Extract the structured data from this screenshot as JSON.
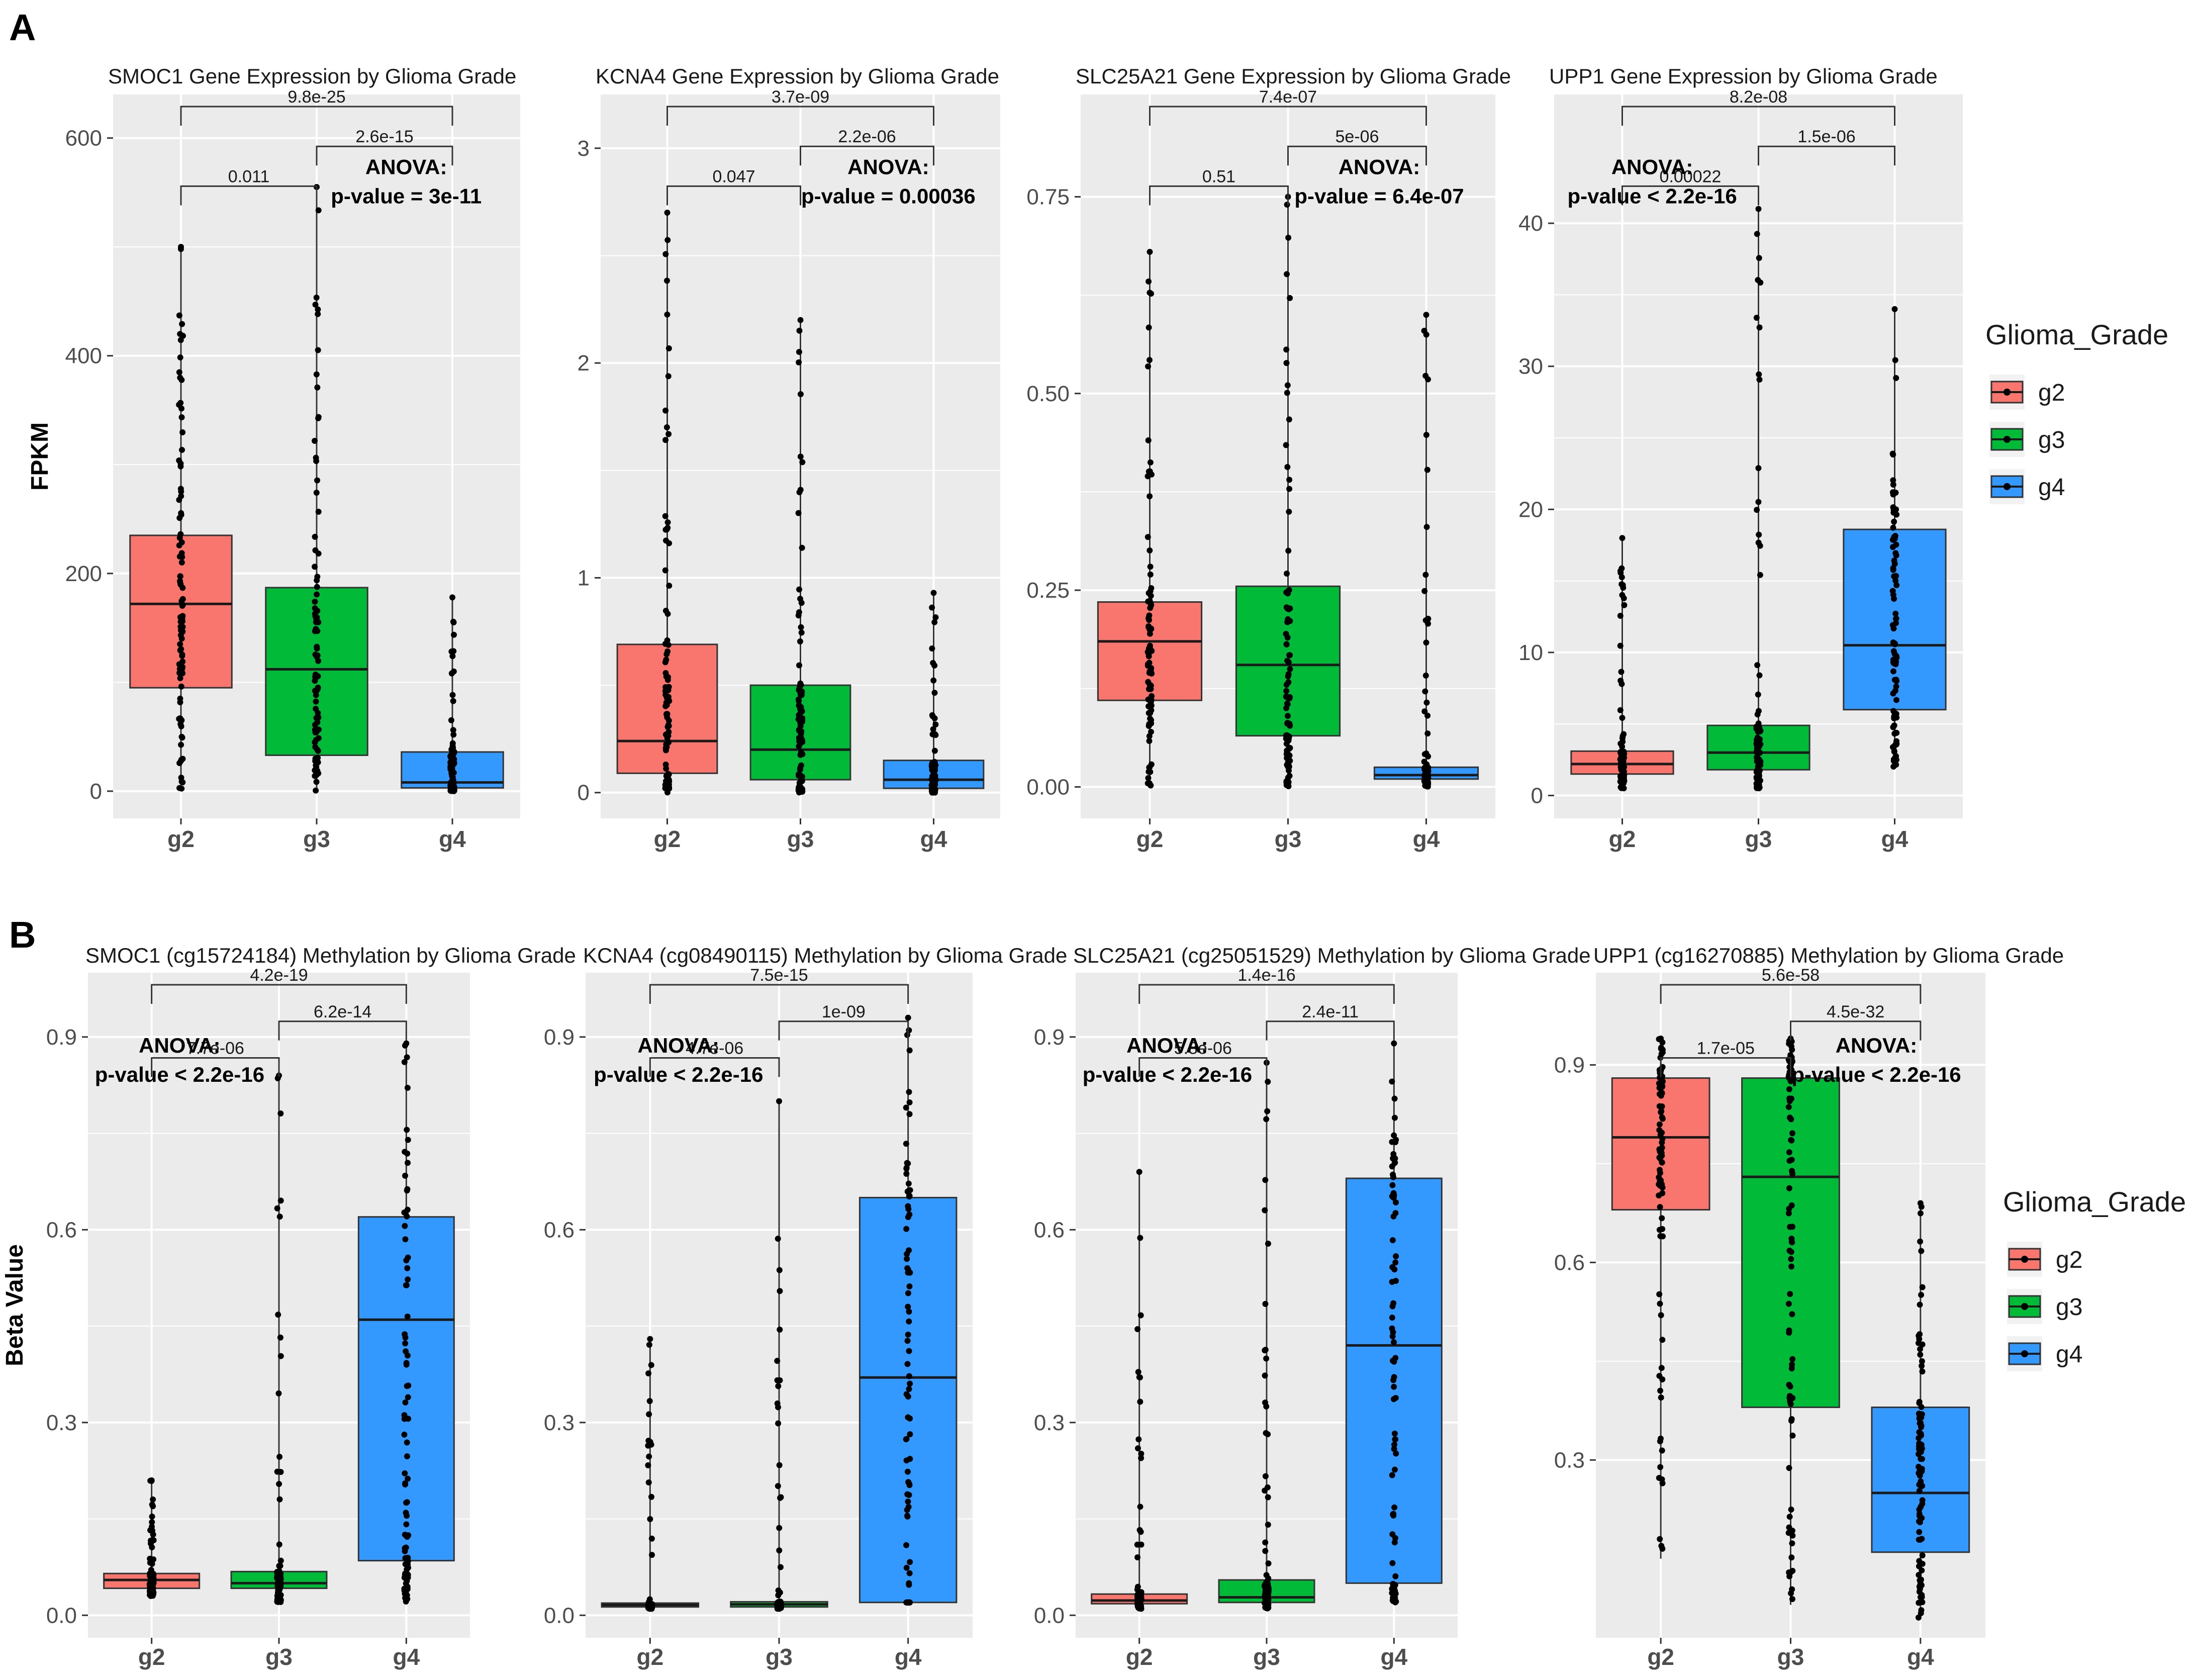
{
  "panels": [
    {
      "letter": "A",
      "row": 0
    },
    {
      "letter": "B",
      "row": 1
    }
  ],
  "colors": {
    "g2": "#F8766D",
    "g3": "#00BA38",
    "g4": "#3399FF"
  },
  "legend": {
    "title": "Glioma_Grade",
    "items": [
      {
        "label": "g2",
        "color": "#F8766D"
      },
      {
        "label": "g3",
        "color": "#00BA38"
      },
      {
        "label": "g4",
        "color": "#3399FF"
      }
    ]
  },
  "chart_data": [
    {
      "type": "boxplot",
      "row": 0,
      "col": 0,
      "title": "SMOC1 Gene Expression by Glioma Grade",
      "ylabel": "FPKM",
      "xlabel": "",
      "ylim": [
        -25,
        640
      ],
      "yticks": [
        0,
        200,
        400,
        600
      ],
      "categories": [
        "g2",
        "g3",
        "g4"
      ],
      "boxes": [
        {
          "category": "g2",
          "q1": 95,
          "median": 172,
          "q3": 235,
          "min": 0,
          "max": 500
        },
        {
          "category": "g3",
          "q1": 33,
          "median": 112,
          "q3": 187,
          "min": 0,
          "max": 555
        },
        {
          "category": "g4",
          "q1": 3,
          "median": 8,
          "q3": 36,
          "min": 0,
          "max": 178
        }
      ],
      "comparisons": [
        {
          "from": "g2",
          "to": "g3",
          "label": "0.011",
          "level": 1
        },
        {
          "from": "g3",
          "to": "g4",
          "label": "2.6e-15",
          "level": 2
        },
        {
          "from": "g2",
          "to": "g4",
          "label": "9.8e-25",
          "level": 3
        }
      ],
      "anova": {
        "line1": "ANOVA:",
        "line2": "p-value = 3e-11",
        "position": "right"
      }
    },
    {
      "type": "boxplot",
      "row": 0,
      "col": 1,
      "title": "KCNA4 Gene Expression by Glioma Grade",
      "ylabel": "",
      "xlabel": "",
      "ylim": [
        -0.12,
        3.25
      ],
      "yticks": [
        0,
        1,
        2,
        3
      ],
      "categories": [
        "g2",
        "g3",
        "g4"
      ],
      "boxes": [
        {
          "category": "g2",
          "q1": 0.09,
          "median": 0.24,
          "q3": 0.69,
          "min": 0,
          "max": 2.7
        },
        {
          "category": "g3",
          "q1": 0.06,
          "median": 0.2,
          "q3": 0.5,
          "min": 0,
          "max": 2.2
        },
        {
          "category": "g4",
          "q1": 0.02,
          "median": 0.06,
          "q3": 0.15,
          "min": 0,
          "max": 0.93
        }
      ],
      "comparisons": [
        {
          "from": "g2",
          "to": "g3",
          "label": "0.047",
          "level": 1
        },
        {
          "from": "g3",
          "to": "g4",
          "label": "2.2e-06",
          "level": 2
        },
        {
          "from": "g2",
          "to": "g4",
          "label": "3.7e-09",
          "level": 3
        }
      ],
      "anova": {
        "line1": "ANOVA:",
        "line2": "p-value = 0.00036",
        "position": "right"
      }
    },
    {
      "type": "boxplot",
      "row": 0,
      "col": 2,
      "title": "SLC25A21 Gene Expression by Glioma Grade",
      "ylabel": "",
      "xlabel": "",
      "ylim": [
        -0.04,
        0.88
      ],
      "yticks": [
        0,
        0.25,
        0.5,
        0.75
      ],
      "ytickLabels": [
        "0.00",
        "0.25",
        "0.50",
        "0.75"
      ],
      "categories": [
        "g2",
        "g3",
        "g4"
      ],
      "boxes": [
        {
          "category": "g2",
          "q1": 0.11,
          "median": 0.185,
          "q3": 0.235,
          "min": 0,
          "max": 0.68
        },
        {
          "category": "g3",
          "q1": 0.065,
          "median": 0.155,
          "q3": 0.255,
          "min": 0,
          "max": 0.75
        },
        {
          "category": "g4",
          "q1": 0.01,
          "median": 0.015,
          "q3": 0.025,
          "min": 0,
          "max": 0.6
        }
      ],
      "comparisons": [
        {
          "from": "g2",
          "to": "g3",
          "label": "0.51",
          "level": 1
        },
        {
          "from": "g3",
          "to": "g4",
          "label": "5e-06",
          "level": 2
        },
        {
          "from": "g2",
          "to": "g4",
          "label": "7.4e-07",
          "level": 3
        }
      ],
      "anova": {
        "line1": "ANOVA:",
        "line2": "p-value = 6.4e-07",
        "position": "right"
      }
    },
    {
      "type": "boxplot",
      "row": 0,
      "col": 3,
      "title": "UPP1 Gene Expression by Glioma Grade",
      "ylabel": "",
      "xlabel": "",
      "ylim": [
        -1.6,
        49
      ],
      "yticks": [
        0,
        10,
        20,
        30,
        40
      ],
      "categories": [
        "g2",
        "g3",
        "g4"
      ],
      "boxes": [
        {
          "category": "g2",
          "q1": 1.5,
          "median": 2.2,
          "q3": 3.1,
          "min": 0.5,
          "max": 18
        },
        {
          "category": "g3",
          "q1": 1.8,
          "median": 3,
          "q3": 4.9,
          "min": 0.5,
          "max": 41
        },
        {
          "category": "g4",
          "q1": 6,
          "median": 10.5,
          "q3": 18.6,
          "min": 2,
          "max": 34
        }
      ],
      "comparisons": [
        {
          "from": "g2",
          "to": "g3",
          "label": "0.00022",
          "level": 1
        },
        {
          "from": "g3",
          "to": "g4",
          "label": "1.5e-06",
          "level": 2
        },
        {
          "from": "g2",
          "to": "g4",
          "label": "8.2e-08",
          "level": 3
        }
      ],
      "anova": {
        "line1": "ANOVA:",
        "line2": "p-value < 2.2e-16",
        "position": "left"
      }
    },
    {
      "type": "boxplot",
      "row": 1,
      "col": 0,
      "title": "SMOC1 (cg15724184) Methylation by Glioma Grade",
      "ylabel": "Beta Value",
      "xlabel": "",
      "ylim": [
        -0.035,
        1.0
      ],
      "yticks": [
        0,
        0.3,
        0.6,
        0.9
      ],
      "ytickLabels": [
        "0.0",
        "0.3",
        "0.6",
        "0.9"
      ],
      "categories": [
        "g2",
        "g3",
        "g4"
      ],
      "boxes": [
        {
          "category": "g2",
          "q1": 0.042,
          "median": 0.055,
          "q3": 0.065,
          "min": 0.03,
          "max": 0.21
        },
        {
          "category": "g3",
          "q1": 0.042,
          "median": 0.05,
          "q3": 0.068,
          "min": 0.02,
          "max": 0.84
        },
        {
          "category": "g4",
          "q1": 0.085,
          "median": 0.46,
          "q3": 0.62,
          "min": 0.02,
          "max": 0.89
        }
      ],
      "comparisons": [
        {
          "from": "g2",
          "to": "g3",
          "label": "7.7e-06",
          "level": 1
        },
        {
          "from": "g3",
          "to": "g4",
          "label": "6.2e-14",
          "level": 2
        },
        {
          "from": "g2",
          "to": "g4",
          "label": "4.2e-19",
          "level": 3
        }
      ],
      "anova": {
        "line1": "ANOVA:",
        "line2": "p-value < 2.2e-16",
        "position": "left"
      }
    },
    {
      "type": "boxplot",
      "row": 1,
      "col": 1,
      "title": "KCNA4 (cg08490115) Methylation by Glioma Grade",
      "ylabel": "",
      "xlabel": "",
      "ylim": [
        -0.035,
        1.0
      ],
      "yticks": [
        0,
        0.3,
        0.6,
        0.9
      ],
      "ytickLabels": [
        "0.0",
        "0.3",
        "0.6",
        "0.9"
      ],
      "categories": [
        "g2",
        "g3",
        "g4"
      ],
      "boxes": [
        {
          "category": "g2",
          "q1": 0.013,
          "median": 0.016,
          "q3": 0.019,
          "min": 0.01,
          "max": 0.43
        },
        {
          "category": "g3",
          "q1": 0.013,
          "median": 0.017,
          "q3": 0.021,
          "min": 0.01,
          "max": 0.8
        },
        {
          "category": "g4",
          "q1": 0.02,
          "median": 0.37,
          "q3": 0.65,
          "min": 0.02,
          "max": 0.93
        }
      ],
      "comparisons": [
        {
          "from": "g2",
          "to": "g3",
          "label": "4.7e-06",
          "level": 1
        },
        {
          "from": "g3",
          "to": "g4",
          "label": "1e-09",
          "level": 2
        },
        {
          "from": "g2",
          "to": "g4",
          "label": "7.5e-15",
          "level": 3
        }
      ],
      "anova": {
        "line1": "ANOVA:",
        "line2": "p-value < 2.2e-16",
        "position": "left"
      }
    },
    {
      "type": "boxplot",
      "row": 1,
      "col": 2,
      "title": "SLC25A21 (cg25051529) Methylation by Glioma Grade",
      "ylabel": "",
      "xlabel": "",
      "ylim": [
        -0.035,
        1.0
      ],
      "yticks": [
        0,
        0.3,
        0.6,
        0.9
      ],
      "ytickLabels": [
        "0.0",
        "0.3",
        "0.6",
        "0.9"
      ],
      "categories": [
        "g2",
        "g3",
        "g4"
      ],
      "boxes": [
        {
          "category": "g2",
          "q1": 0.018,
          "median": 0.023,
          "q3": 0.033,
          "min": 0.01,
          "max": 0.69
        },
        {
          "category": "g3",
          "q1": 0.02,
          "median": 0.028,
          "q3": 0.055,
          "min": 0.01,
          "max": 0.86
        },
        {
          "category": "g4",
          "q1": 0.05,
          "median": 0.42,
          "q3": 0.68,
          "min": 0.02,
          "max": 0.89
        }
      ],
      "comparisons": [
        {
          "from": "g2",
          "to": "g3",
          "label": "5.8e-06",
          "level": 1
        },
        {
          "from": "g3",
          "to": "g4",
          "label": "2.4e-11",
          "level": 2
        },
        {
          "from": "g2",
          "to": "g4",
          "label": "1.4e-16",
          "level": 3
        }
      ],
      "anova": {
        "line1": "ANOVA:",
        "line2": "p-value < 2.2e-16",
        "position": "left"
      }
    },
    {
      "type": "boxplot",
      "row": 1,
      "col": 3,
      "title": "UPP1 (cg16270885) Methylation by Glioma Grade",
      "ylabel": "",
      "xlabel": "",
      "ylim": [
        0.03,
        1.04
      ],
      "yticks": [
        0.3,
        0.6,
        0.9
      ],
      "ytickLabels": [
        "0.3",
        "0.6",
        "0.9"
      ],
      "categories": [
        "g2",
        "g3",
        "g4"
      ],
      "boxes": [
        {
          "category": "g2",
          "q1": 0.68,
          "median": 0.79,
          "q3": 0.88,
          "min": 0.15,
          "max": 0.94
        },
        {
          "category": "g3",
          "q1": 0.38,
          "median": 0.73,
          "q3": 0.88,
          "min": 0.08,
          "max": 0.94
        },
        {
          "category": "g4",
          "q1": 0.16,
          "median": 0.25,
          "q3": 0.38,
          "min": 0.06,
          "max": 0.69
        }
      ],
      "comparisons": [
        {
          "from": "g2",
          "to": "g3",
          "label": "1.7e-05",
          "level": 1
        },
        {
          "from": "g3",
          "to": "g4",
          "label": "4.5e-32",
          "level": 2
        },
        {
          "from": "g2",
          "to": "g4",
          "label": "5.6e-58",
          "level": 3
        }
      ],
      "anova": {
        "line1": "ANOVA:",
        "line2": "p-value < 2.2e-16",
        "position": "right"
      }
    }
  ]
}
